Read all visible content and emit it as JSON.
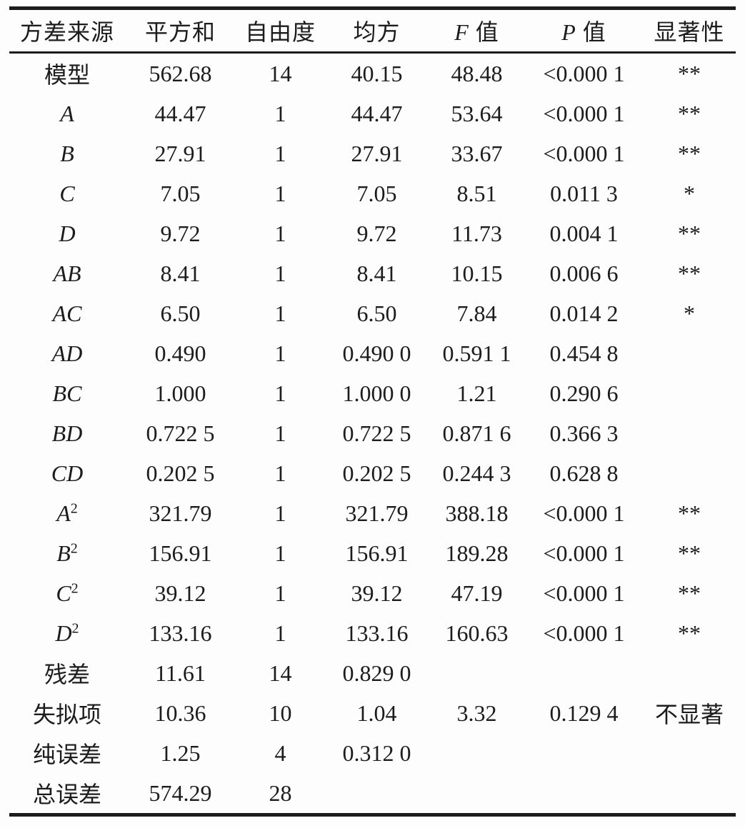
{
  "table": {
    "headers": [
      {
        "it": "",
        "rest": "方差来源"
      },
      {
        "it": "",
        "rest": "平方和"
      },
      {
        "it": "",
        "rest": "自由度"
      },
      {
        "it": "",
        "rest": "均方"
      },
      {
        "it": "F",
        "rest": " 值"
      },
      {
        "it": "P",
        "rest": " 值"
      },
      {
        "it": "",
        "rest": "显著性"
      }
    ],
    "rows": [
      {
        "label": {
          "text": "模型",
          "sup": "",
          "italic": false
        },
        "ss": "562.68",
        "df": "14",
        "ms": "40.15",
        "f": "48.48",
        "p": "<0.000 1",
        "sig": "**"
      },
      {
        "label": {
          "text": "A",
          "sup": "",
          "italic": true
        },
        "ss": "44.47",
        "df": "1",
        "ms": "44.47",
        "f": "53.64",
        "p": "<0.000 1",
        "sig": "**"
      },
      {
        "label": {
          "text": "B",
          "sup": "",
          "italic": true
        },
        "ss": "27.91",
        "df": "1",
        "ms": "27.91",
        "f": "33.67",
        "p": "<0.000 1",
        "sig": "**"
      },
      {
        "label": {
          "text": "C",
          "sup": "",
          "italic": true
        },
        "ss": "7.05",
        "df": "1",
        "ms": "7.05",
        "f": "8.51",
        "p": "0.011 3",
        "sig": "*"
      },
      {
        "label": {
          "text": "D",
          "sup": "",
          "italic": true
        },
        "ss": "9.72",
        "df": "1",
        "ms": "9.72",
        "f": "11.73",
        "p": "0.004 1",
        "sig": "**"
      },
      {
        "label": {
          "text": "AB",
          "sup": "",
          "italic": true
        },
        "ss": "8.41",
        "df": "1",
        "ms": "8.41",
        "f": "10.15",
        "p": "0.006 6",
        "sig": "**"
      },
      {
        "label": {
          "text": "AC",
          "sup": "",
          "italic": true
        },
        "ss": "6.50",
        "df": "1",
        "ms": "6.50",
        "f": "7.84",
        "p": "0.014 2",
        "sig": "*"
      },
      {
        "label": {
          "text": "AD",
          "sup": "",
          "italic": true
        },
        "ss": "0.490",
        "df": "1",
        "ms": "0.490 0",
        "f": "0.591 1",
        "p": "0.454 8",
        "sig": ""
      },
      {
        "label": {
          "text": "BC",
          "sup": "",
          "italic": true
        },
        "ss": "1.000",
        "df": "1",
        "ms": "1.000 0",
        "f": "1.21",
        "p": "0.290 6",
        "sig": ""
      },
      {
        "label": {
          "text": "BD",
          "sup": "",
          "italic": true
        },
        "ss": "0.722 5",
        "df": "1",
        "ms": "0.722 5",
        "f": "0.871 6",
        "p": "0.366 3",
        "sig": ""
      },
      {
        "label": {
          "text": "CD",
          "sup": "",
          "italic": true
        },
        "ss": "0.202 5",
        "df": "1",
        "ms": "0.202 5",
        "f": "0.244 3",
        "p": "0.628 8",
        "sig": ""
      },
      {
        "label": {
          "text": "A",
          "sup": "2",
          "italic": true
        },
        "ss": "321.79",
        "df": "1",
        "ms": "321.79",
        "f": "388.18",
        "p": "<0.000 1",
        "sig": "**"
      },
      {
        "label": {
          "text": "B",
          "sup": "2",
          "italic": true
        },
        "ss": "156.91",
        "df": "1",
        "ms": "156.91",
        "f": "189.28",
        "p": "<0.000 1",
        "sig": "**"
      },
      {
        "label": {
          "text": "C",
          "sup": "2",
          "italic": true
        },
        "ss": "39.12",
        "df": "1",
        "ms": "39.12",
        "f": "47.19",
        "p": "<0.000 1",
        "sig": "**"
      },
      {
        "label": {
          "text": "D",
          "sup": "2",
          "italic": true
        },
        "ss": "133.16",
        "df": "1",
        "ms": "133.16",
        "f": "160.63",
        "p": "<0.000 1",
        "sig": "**"
      },
      {
        "label": {
          "text": "残差",
          "sup": "",
          "italic": false
        },
        "ss": "11.61",
        "df": "14",
        "ms": "0.829 0",
        "f": "",
        "p": "",
        "sig": ""
      },
      {
        "label": {
          "text": "失拟项",
          "sup": "",
          "italic": false
        },
        "ss": "10.36",
        "df": "10",
        "ms": "1.04",
        "f": "3.32",
        "p": "0.129 4",
        "sig": "不显著"
      },
      {
        "label": {
          "text": "纯误差",
          "sup": "",
          "italic": false
        },
        "ss": "1.25",
        "df": "4",
        "ms": "0.312 0",
        "f": "",
        "p": "",
        "sig": ""
      },
      {
        "label": {
          "text": "总误差",
          "sup": "",
          "italic": false
        },
        "ss": "574.29",
        "df": "28",
        "ms": "",
        "f": "",
        "p": "",
        "sig": ""
      }
    ]
  },
  "colors": {
    "text": "#1c1c1c",
    "rule": "#1c1c1c",
    "background": "#fdfdfd"
  }
}
